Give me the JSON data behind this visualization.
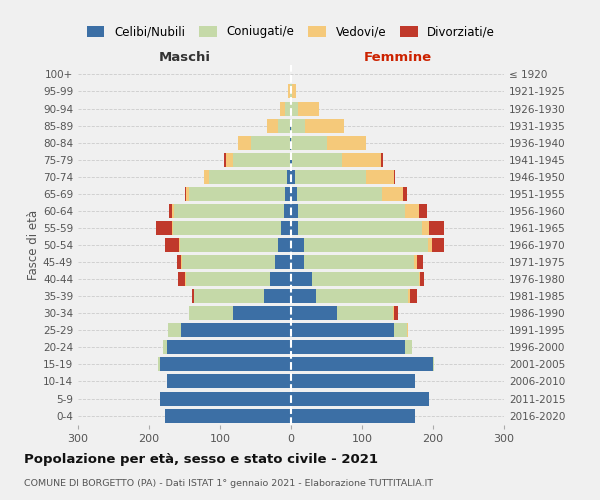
{
  "age_groups": [
    "0-4",
    "5-9",
    "10-14",
    "15-19",
    "20-24",
    "25-29",
    "30-34",
    "35-39",
    "40-44",
    "45-49",
    "50-54",
    "55-59",
    "60-64",
    "65-69",
    "70-74",
    "75-79",
    "80-84",
    "85-89",
    "90-94",
    "95-99",
    "100+"
  ],
  "birth_years": [
    "2016-2020",
    "2011-2015",
    "2006-2010",
    "2001-2005",
    "1996-2000",
    "1991-1995",
    "1986-1990",
    "1981-1985",
    "1976-1980",
    "1971-1975",
    "1966-1970",
    "1961-1965",
    "1956-1960",
    "1951-1955",
    "1946-1950",
    "1941-1945",
    "1936-1940",
    "1931-1935",
    "1926-1930",
    "1921-1925",
    "≤ 1920"
  ],
  "colors": {
    "celibi": "#3c6fa5",
    "coniugati": "#c5d9a8",
    "vedovi": "#f5c97a",
    "divorziati": "#c0392b"
  },
  "males": {
    "celibi": [
      178,
      185,
      175,
      185,
      175,
      155,
      82,
      38,
      30,
      22,
      18,
      14,
      10,
      8,
      5,
      2,
      1,
      1,
      0,
      0,
      0
    ],
    "coniugati": [
      0,
      0,
      0,
      2,
      5,
      18,
      62,
      98,
      118,
      132,
      138,
      152,
      155,
      135,
      110,
      80,
      55,
      18,
      8,
      2,
      0
    ],
    "vedovi": [
      0,
      0,
      0,
      0,
      0,
      0,
      0,
      0,
      1,
      1,
      2,
      2,
      2,
      5,
      8,
      10,
      18,
      15,
      8,
      2,
      0
    ],
    "divorziati": [
      0,
      0,
      0,
      0,
      0,
      0,
      0,
      4,
      10,
      5,
      20,
      22,
      5,
      2,
      0,
      2,
      0,
      0,
      0,
      0,
      0
    ]
  },
  "females": {
    "nubili": [
      175,
      195,
      175,
      200,
      160,
      145,
      65,
      35,
      30,
      18,
      18,
      10,
      10,
      8,
      5,
      2,
      0,
      0,
      0,
      0,
      0
    ],
    "coniugati": [
      0,
      0,
      0,
      2,
      10,
      18,
      78,
      130,
      150,
      155,
      175,
      175,
      150,
      120,
      100,
      70,
      50,
      20,
      10,
      2,
      0
    ],
    "vedovi": [
      0,
      0,
      0,
      0,
      0,
      2,
      2,
      2,
      2,
      5,
      5,
      10,
      20,
      30,
      40,
      55,
      55,
      55,
      30,
      5,
      0
    ],
    "divorziati": [
      0,
      0,
      0,
      0,
      0,
      0,
      5,
      10,
      5,
      8,
      18,
      20,
      12,
      5,
      2,
      2,
      0,
      0,
      0,
      0,
      0
    ]
  },
  "title": "Popolazione per età, sesso e stato civile - 2021",
  "subtitle": "COMUNE DI BORGETTO (PA) - Dati ISTAT 1° gennaio 2021 - Elaborazione TUTTITALIA.IT",
  "xlabel_left": "Maschi",
  "xlabel_right": "Femmine",
  "ylabel_left": "Fasce di età",
  "xlim": 300,
  "legend_labels": [
    "Celibi/Nubili",
    "Coniugati/e",
    "Vedovi/e",
    "Divorziati/e"
  ],
  "background_color": "#f0f0f0"
}
